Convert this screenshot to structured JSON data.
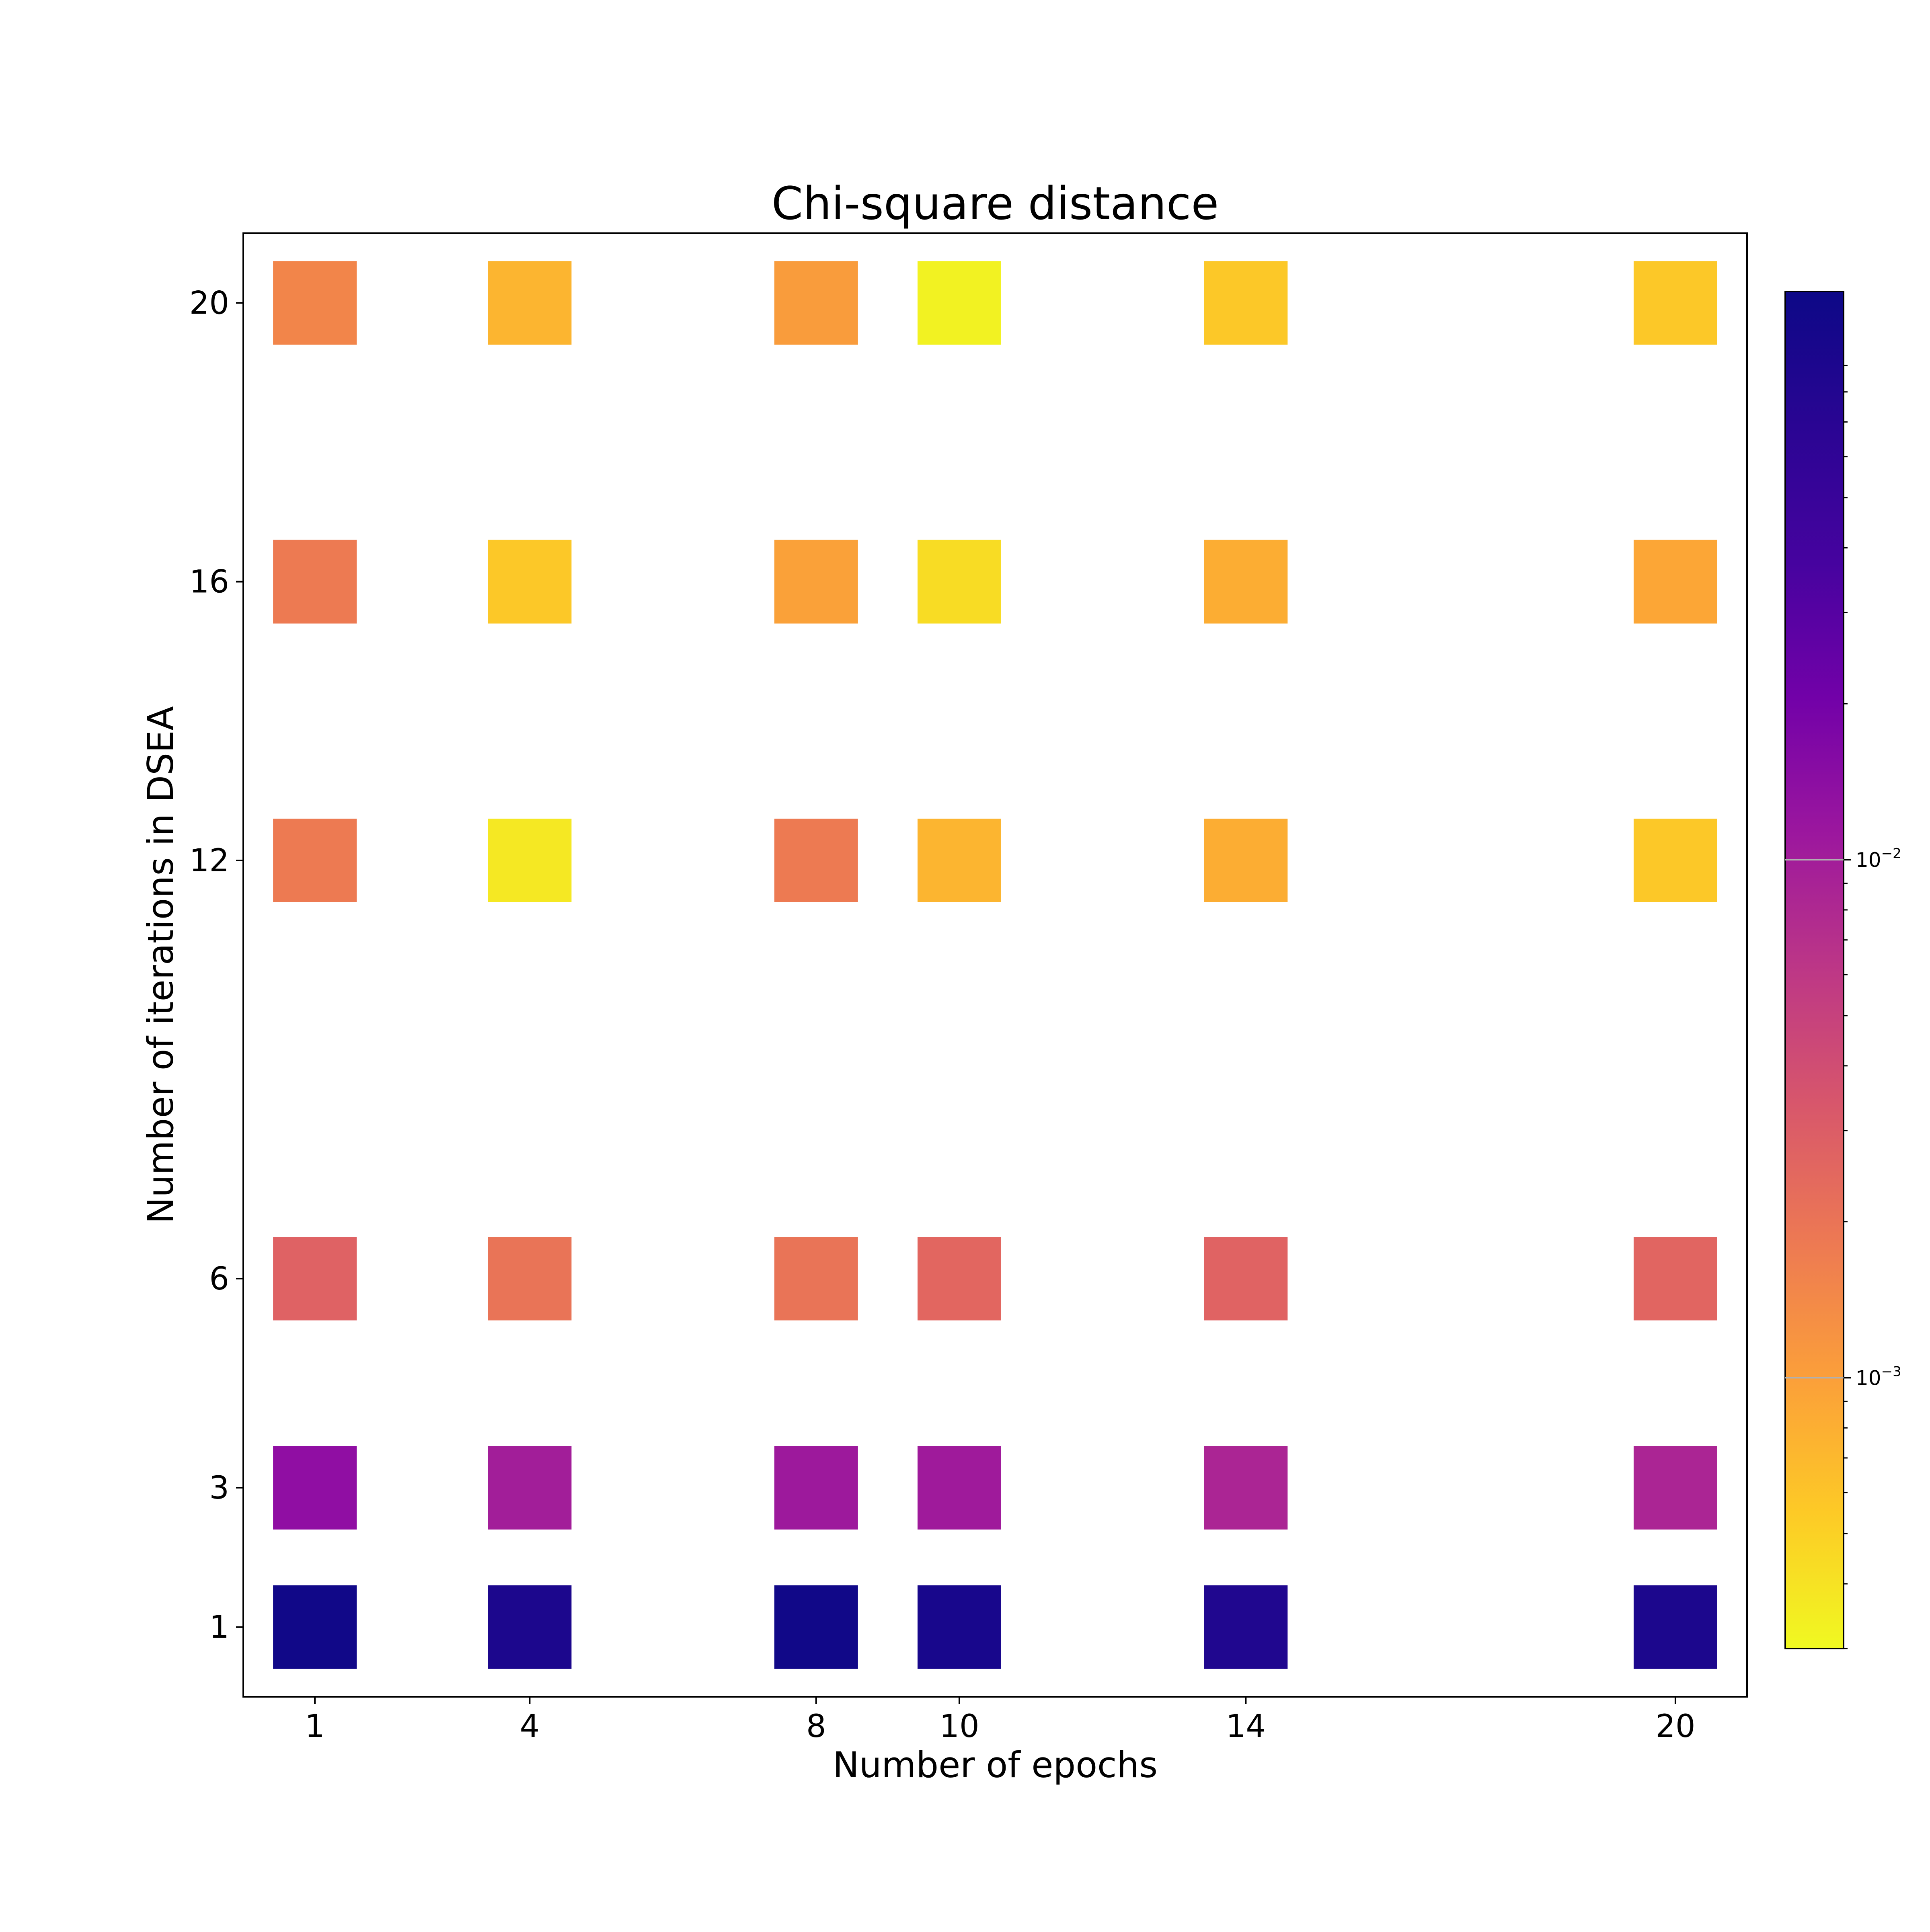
{
  "chart_data": {
    "type": "heatmap",
    "title": "Chi-square distance",
    "xlabel": "Number of epochs",
    "ylabel": "Number of iterations in DSEA",
    "x": [
      1,
      4,
      8,
      10,
      14,
      20
    ],
    "y": [
      1,
      3,
      6,
      12,
      16,
      20
    ],
    "xlim": [
      0,
      21
    ],
    "ylim": [
      0,
      21
    ],
    "grid": false,
    "colormap": "plasma_r",
    "color_scale": "log",
    "colorbar": {
      "ticks": [
        0.001,
        0.01
      ],
      "tick_labels": [
        {
          "base": "10",
          "exp": "−3"
        },
        {
          "base": "10",
          "exp": "−2"
        }
      ],
      "range": [
        0.0003,
        0.125
      ]
    },
    "values": [
      [
        0.12,
        0.105,
        0.12,
        0.11,
        0.1,
        0.105
      ],
      [
        0.02,
        0.0145,
        0.016,
        0.0155,
        0.0125,
        0.0125
      ],
      [
        0.0035,
        0.0025,
        0.0025,
        0.0032,
        0.0034,
        0.0033
      ],
      [
        0.0022,
        0.00038,
        0.0022,
        0.0008,
        0.0009,
        0.0006
      ],
      [
        0.0022,
        0.0006,
        0.0011,
        0.00045,
        0.0009,
        0.001
      ],
      [
        0.0018,
        0.0008,
        0.0012,
        0.00033,
        0.0006,
        0.0006
      ]
    ]
  }
}
